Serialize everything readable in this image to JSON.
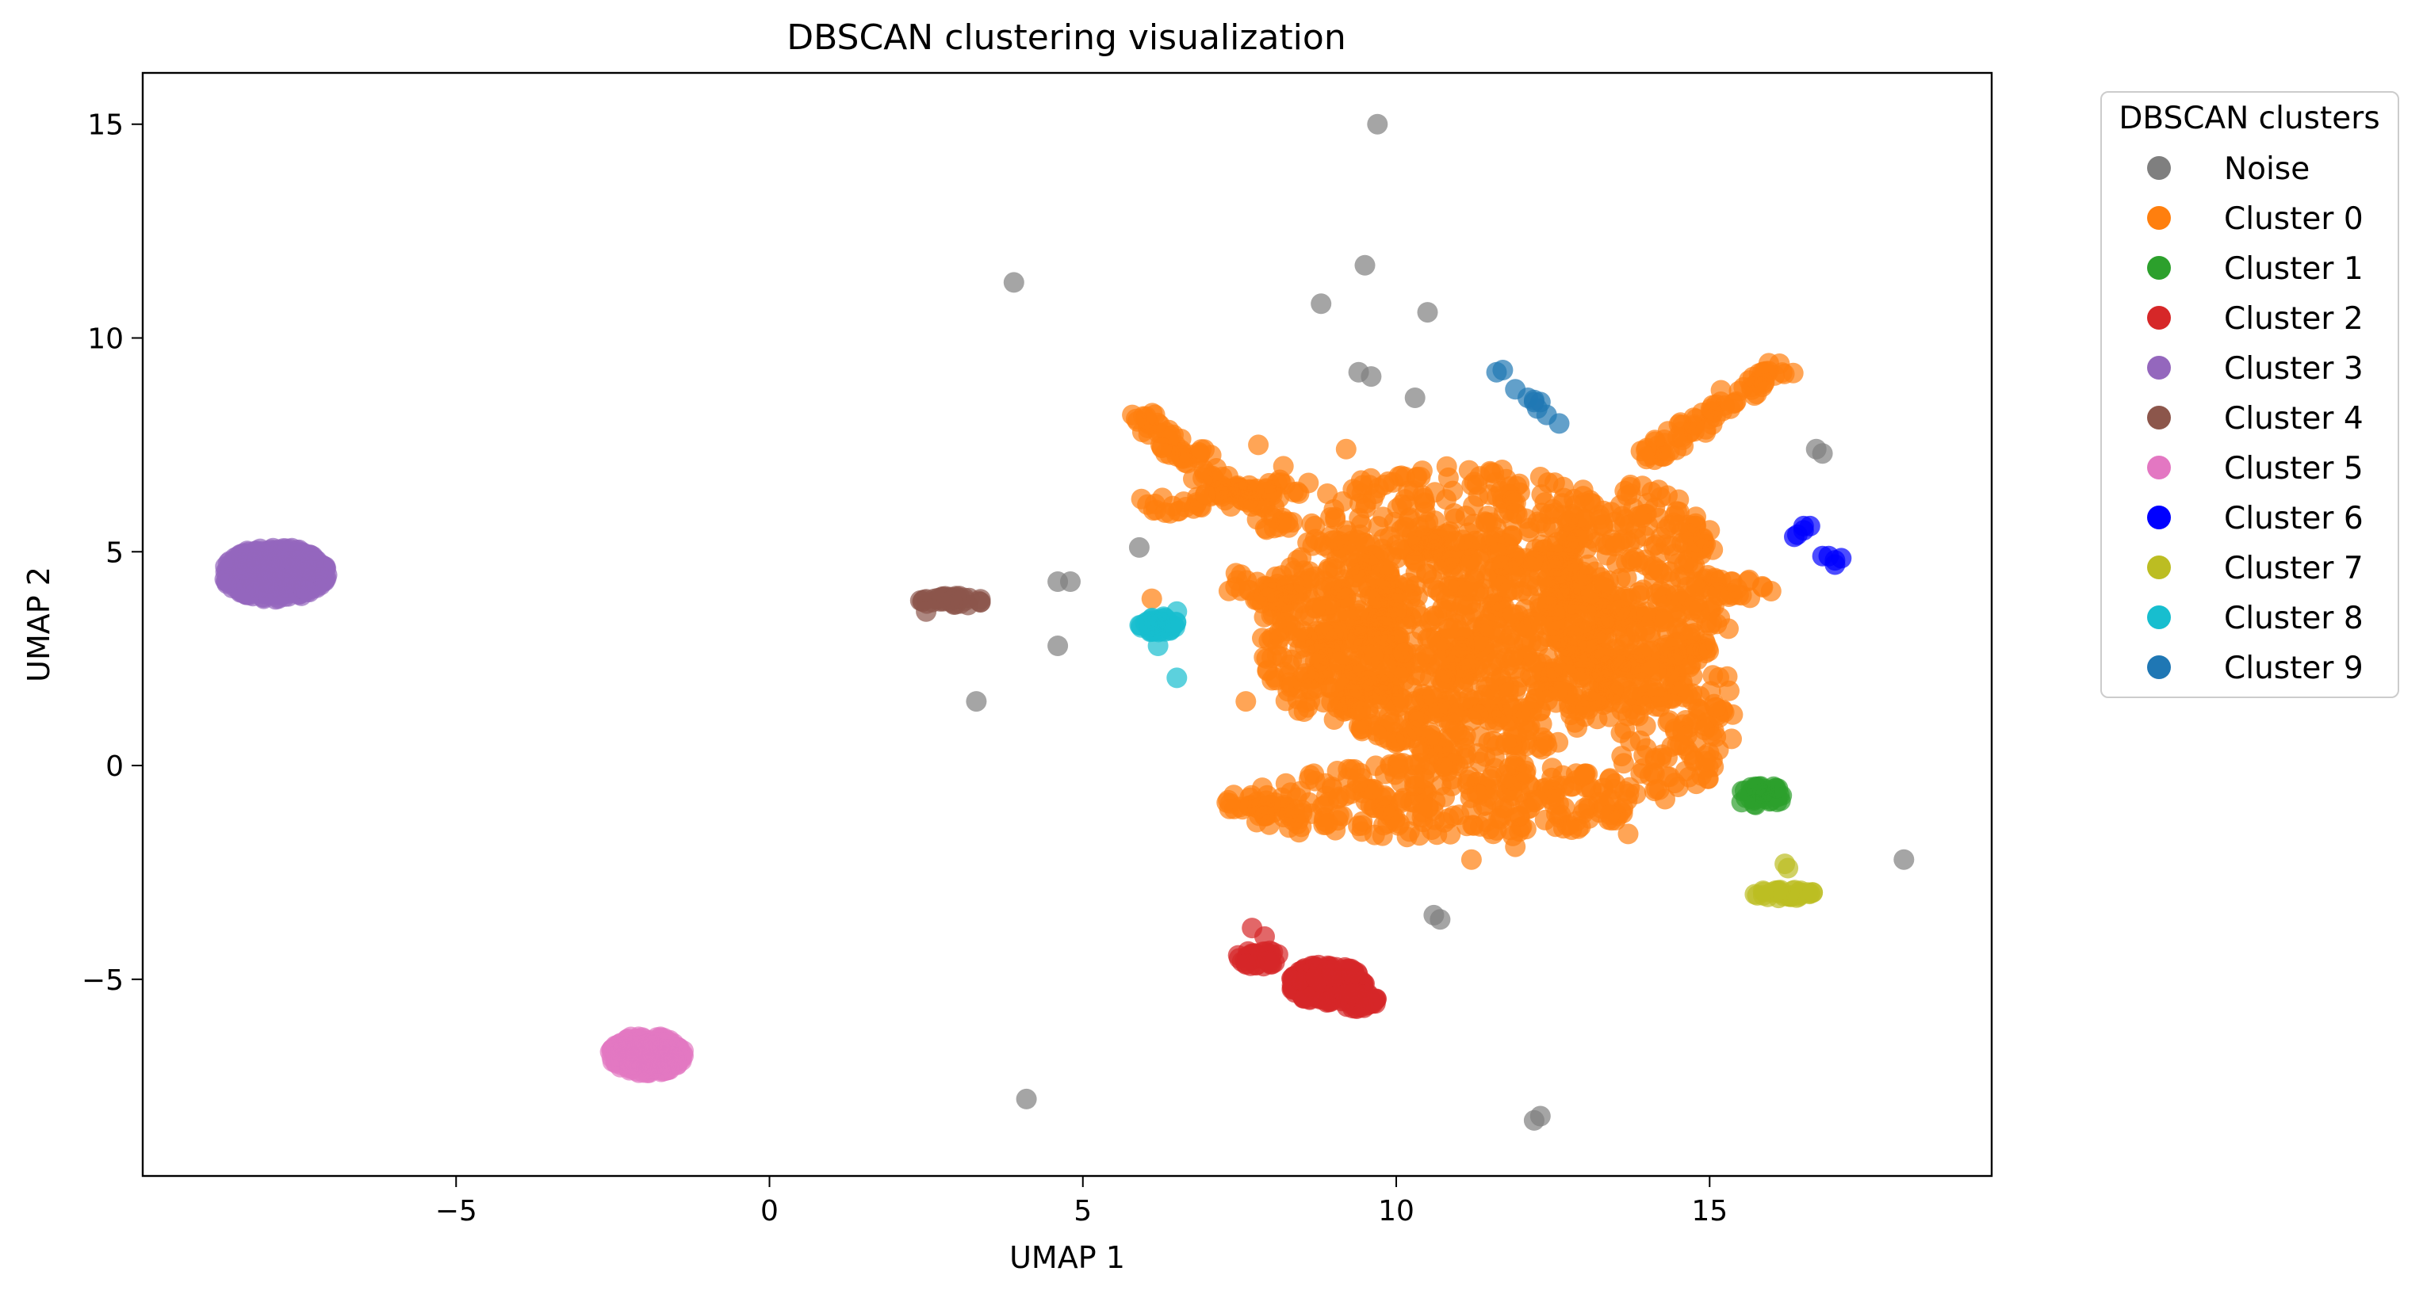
{
  "chart_data": {
    "type": "scatter",
    "title": "DBSCAN clustering visualization",
    "xlabel": "UMAP 1",
    "ylabel": "UMAP 2",
    "xlim": [
      -10.0,
      19.5
    ],
    "ylim": [
      -9.6,
      16.2
    ],
    "x_ticks": [
      -5,
      0,
      5,
      10,
      15
    ],
    "y_ticks": [
      -5,
      0,
      5,
      10,
      15
    ],
    "x_tick_labels": [
      "−5",
      "0",
      "5",
      "10",
      "15"
    ],
    "y_tick_labels": [
      "−5",
      "0",
      "5",
      "10",
      "15"
    ],
    "grid": false,
    "legend": {
      "title": "DBSCAN clusters",
      "placement": "outside-right-top"
    },
    "series": [
      {
        "name": "Noise",
        "color": "#7f7f7f",
        "points": [
          [
            9.7,
            15.0
          ],
          [
            3.9,
            11.3
          ],
          [
            9.5,
            11.7
          ],
          [
            8.8,
            10.8
          ],
          [
            10.5,
            10.6
          ],
          [
            9.4,
            9.2
          ],
          [
            9.6,
            9.1
          ],
          [
            10.3,
            8.6
          ],
          [
            16.7,
            7.4
          ],
          [
            16.8,
            7.3
          ],
          [
            5.9,
            5.1
          ],
          [
            4.6,
            4.3
          ],
          [
            4.8,
            4.3
          ],
          [
            4.6,
            2.8
          ],
          [
            3.3,
            1.5
          ],
          [
            18.1,
            -2.2
          ],
          [
            10.6,
            -3.5
          ],
          [
            10.7,
            -3.6
          ],
          [
            4.1,
            -7.8
          ],
          [
            12.3,
            -8.2
          ],
          [
            12.2,
            -8.3
          ]
        ]
      },
      {
        "name": "Cluster 0",
        "color": "#ff7f0e",
        "blobs": [
          {
            "cx": 11.2,
            "cy": 2.8,
            "rx": 2.6,
            "ry": 2.7,
            "n": 900
          },
          {
            "cx": 13.8,
            "cy": 4.0,
            "rx": 1.4,
            "ry": 2.6,
            "n": 350
          },
          {
            "cx": 9.0,
            "cy": 3.2,
            "rx": 1.2,
            "ry": 2.2,
            "n": 250
          },
          {
            "cx": 10.8,
            "cy": -0.8,
            "rx": 3.2,
            "ry": 0.9,
            "n": 300
          },
          {
            "cx": 11.0,
            "cy": 5.8,
            "rx": 2.4,
            "ry": 1.2,
            "n": 200
          },
          {
            "cx": 14.4,
            "cy": 1.2,
            "rx": 1.0,
            "ry": 2.0,
            "n": 150
          }
        ],
        "lines": [
          {
            "from": [
              14.0,
              7.2
            ],
            "to": [
              16.2,
              9.4
            ],
            "n": 80
          },
          {
            "from": [
              5.8,
              8.2
            ],
            "to": [
              8.3,
              5.5
            ],
            "n": 100
          },
          {
            "from": [
              6.0,
              6.0
            ],
            "to": [
              8.5,
              6.6
            ],
            "n": 60
          },
          {
            "from": [
              7.4,
              4.3
            ],
            "to": [
              8.5,
              3.8
            ],
            "n": 30
          },
          {
            "from": [
              14.5,
              4.2
            ],
            "to": [
              16.0,
              4.1
            ],
            "n": 25
          },
          {
            "from": [
              7.2,
              -0.8
            ],
            "to": [
              8.5,
              -1.4
            ],
            "n": 30
          }
        ],
        "points": [
          [
            7.6,
            1.5
          ],
          [
            11.2,
            -2.2
          ],
          [
            11.9,
            -1.9
          ],
          [
            13.7,
            -1.6
          ],
          [
            12.8,
            -1.5
          ],
          [
            13.0,
            -1.0
          ],
          [
            8.2,
            7.0
          ],
          [
            8.7,
            5.6
          ],
          [
            14.5,
            -0.5
          ],
          [
            15.0,
            5.5
          ],
          [
            15.3,
            3.2
          ],
          [
            7.8,
            7.5
          ],
          [
            9.2,
            7.4
          ],
          [
            6.1,
            3.9
          ]
        ]
      },
      {
        "name": "Cluster 1",
        "color": "#2ca02c",
        "blobs": [
          {
            "cx": 15.8,
            "cy": -0.7,
            "rx": 0.4,
            "ry": 0.25,
            "n": 45
          }
        ]
      },
      {
        "name": "Cluster 2",
        "color": "#d62728",
        "blobs": [
          {
            "cx": 8.9,
            "cy": -5.1,
            "rx": 0.6,
            "ry": 0.45,
            "n": 250
          },
          {
            "cx": 7.8,
            "cy": -4.5,
            "rx": 0.35,
            "ry": 0.2,
            "n": 40
          },
          {
            "cx": 9.3,
            "cy": -5.5,
            "rx": 0.4,
            "ry": 0.2,
            "n": 60
          }
        ],
        "points": [
          [
            7.7,
            -3.8
          ],
          [
            7.9,
            -4.0
          ]
        ]
      },
      {
        "name": "Cluster 3",
        "color": "#9467bd",
        "blobs": [
          {
            "cx": -7.9,
            "cy": 4.5,
            "rx": 0.85,
            "ry": 0.62,
            "n": 500
          }
        ]
      },
      {
        "name": "Cluster 4",
        "color": "#8c564b",
        "blobs": [
          {
            "cx": 2.9,
            "cy": 3.85,
            "rx": 0.5,
            "ry": 0.12,
            "n": 40
          }
        ],
        "points": [
          [
            2.5,
            3.6
          ]
        ]
      },
      {
        "name": "Cluster 5",
        "color": "#e377c2",
        "blobs": [
          {
            "cx": -1.95,
            "cy": -6.75,
            "rx": 0.6,
            "ry": 0.45,
            "n": 260
          }
        ]
      },
      {
        "name": "Cluster 6",
        "color": "#0000ff",
        "points": [
          [
            16.4,
            5.4
          ],
          [
            16.5,
            5.5
          ],
          [
            16.6,
            5.6
          ],
          [
            16.5,
            5.6
          ],
          [
            16.9,
            4.9
          ],
          [
            17.0,
            4.8
          ],
          [
            17.1,
            4.85
          ],
          [
            16.8,
            4.9
          ],
          [
            17.0,
            4.7
          ],
          [
            16.35,
            5.35
          ]
        ]
      },
      {
        "name": "Cluster 7",
        "color": "#bcbd22",
        "blobs": [
          {
            "cx": 16.2,
            "cy": -3.0,
            "rx": 0.5,
            "ry": 0.1,
            "n": 35
          }
        ],
        "points": [
          [
            16.2,
            -2.3
          ],
          [
            16.25,
            -2.4
          ]
        ]
      },
      {
        "name": "Cluster 8",
        "color": "#17becf",
        "blobs": [
          {
            "cx": 6.2,
            "cy": 3.3,
            "rx": 0.3,
            "ry": 0.2,
            "n": 45
          }
        ],
        "points": [
          [
            6.5,
            2.05
          ],
          [
            6.2,
            2.8
          ],
          [
            6.5,
            3.6
          ]
        ]
      },
      {
        "name": "Cluster 9",
        "color": "#1f77b4",
        "points": [
          [
            11.6,
            9.2
          ],
          [
            11.7,
            9.25
          ],
          [
            11.9,
            8.8
          ],
          [
            12.1,
            8.6
          ],
          [
            12.2,
            8.5
          ],
          [
            12.3,
            8.5
          ],
          [
            12.25,
            8.35
          ],
          [
            12.4,
            8.2
          ],
          [
            12.6,
            8.0
          ],
          [
            12.2,
            8.55
          ]
        ]
      }
    ]
  }
}
